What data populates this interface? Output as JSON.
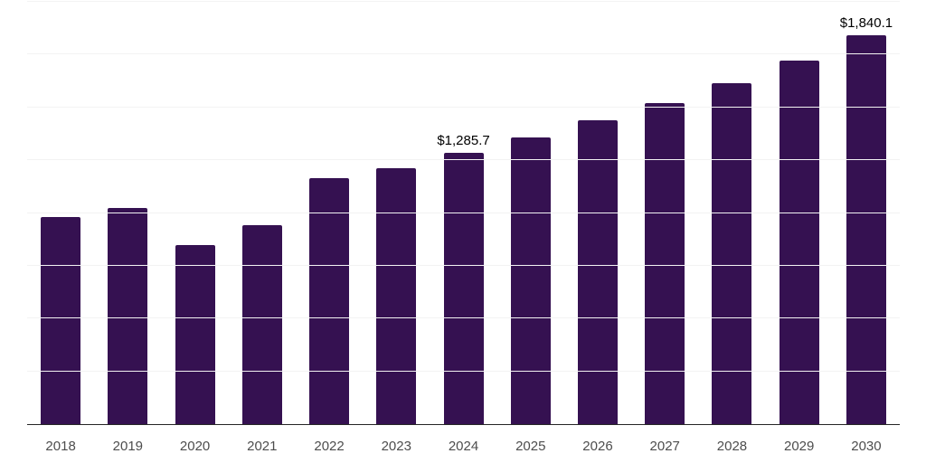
{
  "chart_data": {
    "type": "bar",
    "title": "",
    "xlabel": "",
    "ylabel": "",
    "categories": [
      "2018",
      "2019",
      "2020",
      "2021",
      "2022",
      "2023",
      "2024",
      "2025",
      "2026",
      "2027",
      "2028",
      "2029",
      "2030"
    ],
    "values": [
      982,
      1024,
      848,
      941,
      1163,
      1214,
      1285.7,
      1356,
      1440,
      1521,
      1614,
      1723,
      1840.1
    ],
    "bar_labels": [
      "",
      "",
      "",
      "",
      "",
      "",
      "$1,285.7",
      "",
      "",
      "",
      "",
      "",
      "$1,840.1"
    ],
    "ylim": [
      0,
      2000
    ],
    "grid_step": 250,
    "grid": "horizontal",
    "legend": "none",
    "y_axis_tick_labels_visible": false
  },
  "colors": {
    "background": "#ffffff",
    "bar": "#351151",
    "axis_line": "#262626",
    "gridline": "#f3f3f3",
    "tick_label": "#4d4d4d",
    "data_label": "#000000"
  }
}
